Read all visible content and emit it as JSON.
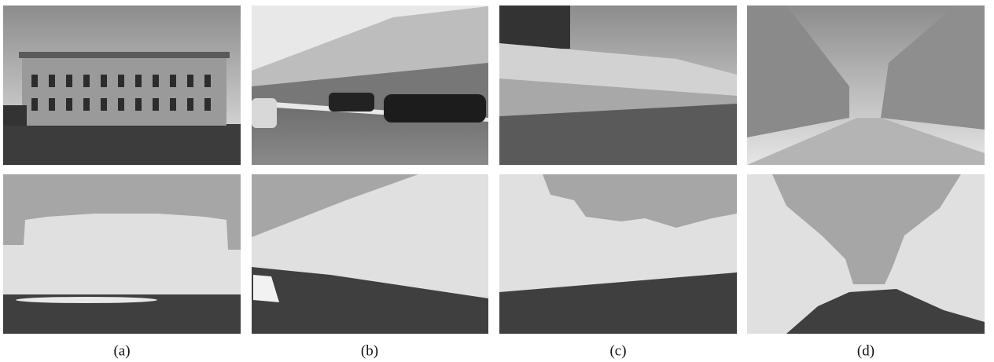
{
  "panels": [
    {
      "caption": "(a)"
    },
    {
      "caption": "(b)"
    },
    {
      "caption": "(c)"
    },
    {
      "caption": "(d)"
    }
  ]
}
